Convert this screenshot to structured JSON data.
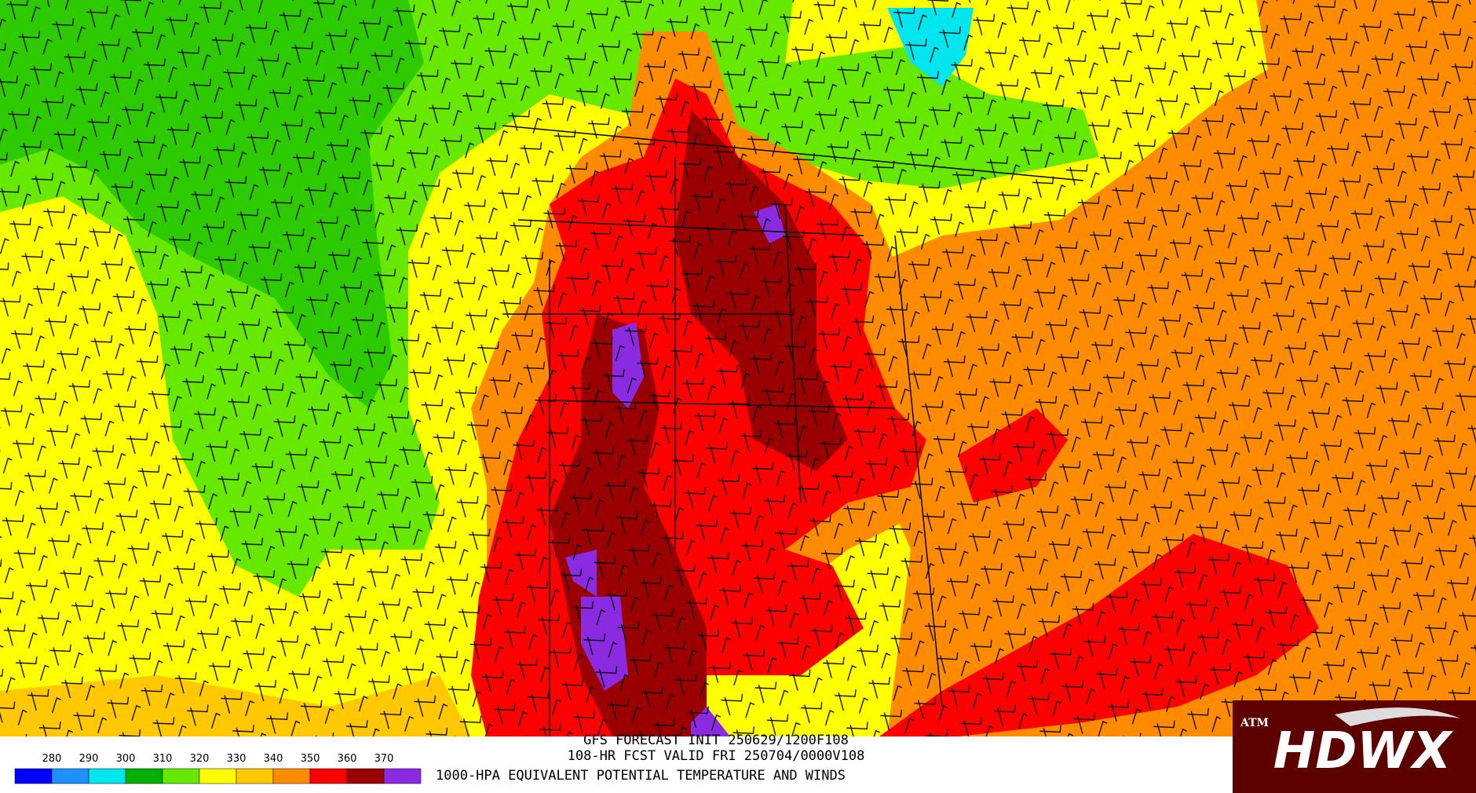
{
  "header": {
    "lines": [
      "GFS FORECAST INIT 250629/1200F108",
      "108-HR FCST VALID FRI 250704/0000V108",
      "1000-HPA EQUIVALENT POTENTIAL TEMPERATURE AND WINDS"
    ]
  },
  "colorbar": {
    "ticks": [
      280,
      290,
      300,
      310,
      320,
      330,
      340,
      350,
      360,
      370
    ],
    "colors": [
      "#0000ff",
      "#1e90ff",
      "#00e5ee",
      "#00b000",
      "#66e800",
      "#ffff00",
      "#ffc800",
      "#ff8c00",
      "#ff0000",
      "#9b0000",
      "#8a2be2"
    ]
  },
  "logo": {
    "text": "HDWX"
  }
}
